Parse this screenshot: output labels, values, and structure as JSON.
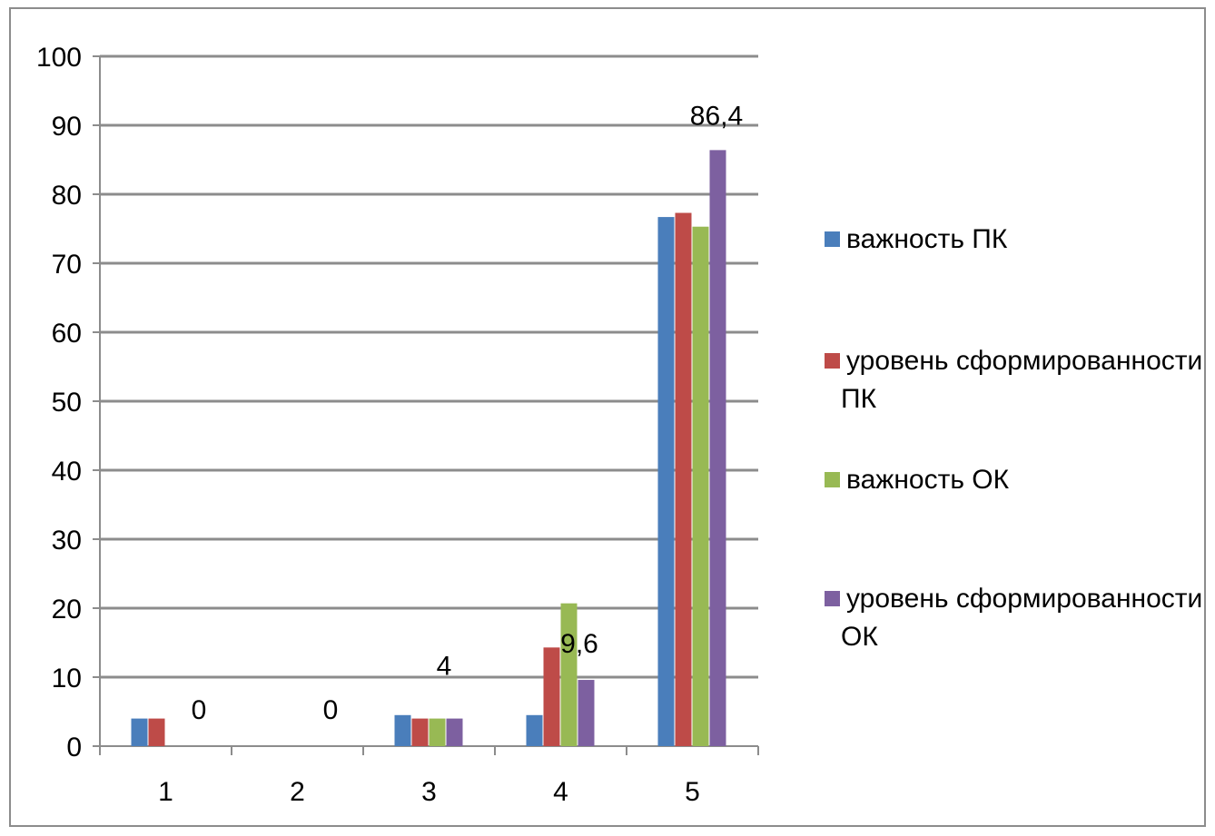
{
  "chart_data": {
    "type": "bar",
    "title": "",
    "xlabel": "",
    "ylabel": "",
    "categories": [
      "1",
      "2",
      "3",
      "4",
      "5"
    ],
    "ylim": [
      0,
      100
    ],
    "yticks": [
      "0",
      "10",
      "20",
      "30",
      "40",
      "50",
      "60",
      "70",
      "80",
      "90",
      "100"
    ],
    "grid": true,
    "legend_position": "right",
    "series": [
      {
        "name": "важность ПК",
        "color": "#4a7ebb",
        "values": [
          4,
          0,
          4.5,
          4.5,
          76.7
        ]
      },
      {
        "name": "уровень сформированности ПК",
        "color": "#be4b48",
        "values": [
          4,
          0,
          4,
          14.3,
          77.3
        ]
      },
      {
        "name": "важность ОК",
        "color": "#98b954",
        "values": [
          0,
          0,
          4,
          20.7,
          75.3
        ]
      },
      {
        "name": "уровень сформированности ОК",
        "color": "#7d60a0",
        "values": [
          0,
          0,
          4,
          9.6,
          86.4
        ]
      }
    ],
    "data_labels": [
      {
        "text": "0",
        "category": 0,
        "series": 3
      },
      {
        "text": "0",
        "category": 1,
        "series": 3
      },
      {
        "text": "4",
        "category": 2,
        "series": 3
      },
      {
        "text": "9,6",
        "category": 3,
        "series": 3
      },
      {
        "text": "86,4",
        "category": 4,
        "series": 3
      }
    ],
    "legend_lines": [
      [
        "важность ПК"
      ],
      [
        "уровень сформированности",
        "ПК"
      ],
      [
        "важность ОК"
      ],
      [
        "уровень сформированности",
        "ОК"
      ]
    ]
  }
}
